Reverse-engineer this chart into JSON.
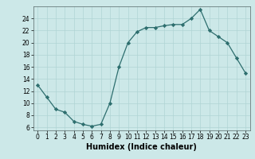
{
  "x": [
    0,
    1,
    2,
    3,
    4,
    5,
    6,
    7,
    8,
    9,
    10,
    11,
    12,
    13,
    14,
    15,
    16,
    17,
    18,
    19,
    20,
    21,
    22,
    23
  ],
  "y": [
    13,
    11,
    9,
    8.5,
    7,
    6.5,
    6.2,
    6.5,
    10,
    16,
    20,
    21.8,
    22.5,
    22.5,
    22.8,
    23,
    23,
    24,
    25.5,
    22,
    21,
    20,
    17.5,
    15
  ],
  "line_color": "#2d6e6e",
  "marker_color": "#2d6e6e",
  "bg_color": "#cce8e8",
  "grid_color": "#b0d4d4",
  "xlabel": "Humidex (Indice chaleur)",
  "xlim": [
    -0.5,
    23.5
  ],
  "ylim": [
    5.5,
    26
  ],
  "yticks": [
    6,
    8,
    10,
    12,
    14,
    16,
    18,
    20,
    22,
    24
  ],
  "xticks": [
    0,
    1,
    2,
    3,
    4,
    5,
    6,
    7,
    8,
    9,
    10,
    11,
    12,
    13,
    14,
    15,
    16,
    17,
    18,
    19,
    20,
    21,
    22,
    23
  ],
  "tick_fontsize": 5.5,
  "label_fontsize": 7
}
